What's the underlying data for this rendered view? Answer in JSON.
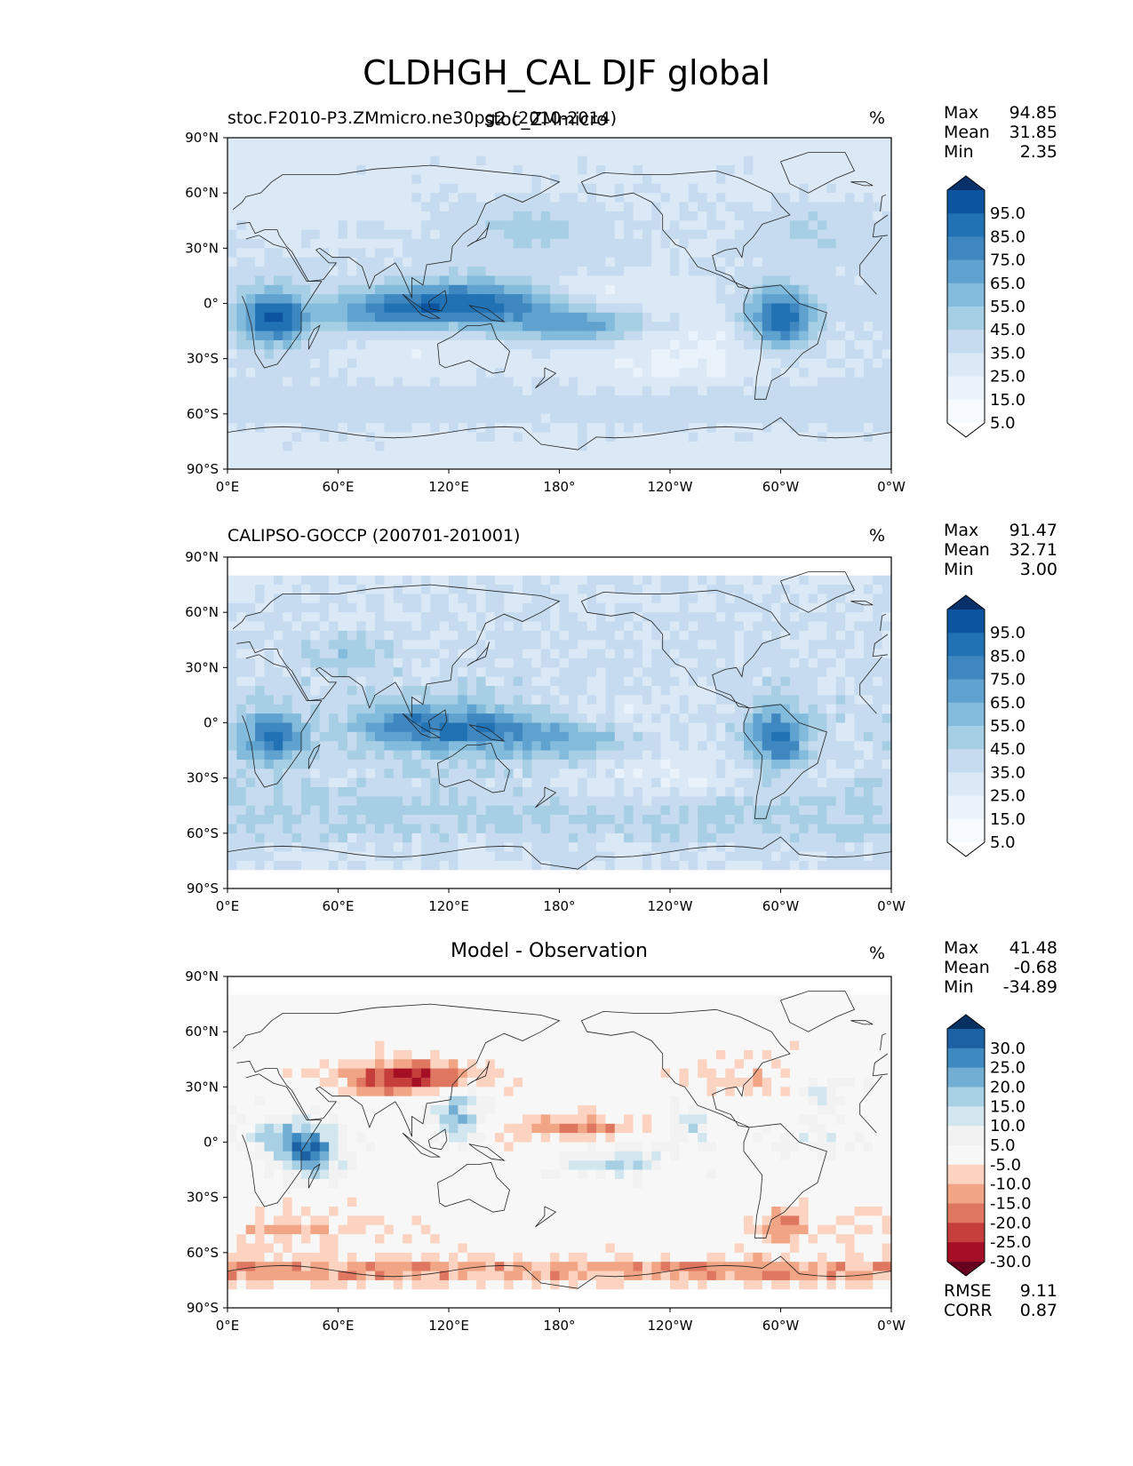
{
  "figure": {
    "title": "CLDHGH_CAL DJF global"
  },
  "color_scales": {
    "sequential": [
      "#f7fbff",
      "#ffffff",
      "#eaf2fb",
      "#dbe9f6",
      "#c6dbef",
      "#a6cee4",
      "#82bbdb",
      "#5fa2d0",
      "#3f87c1",
      "#2171b5",
      "#0d54a0",
      "#08306b"
    ],
    "diverging": [
      "#67001f",
      "#a50f26",
      "#c63e3c",
      "#df7660",
      "#f1a584",
      "#fbd3c0",
      "#f7f7f7",
      "#f2f2f2",
      "#d2e6f0",
      "#a8d0e5",
      "#72aed3",
      "#3e8ac0",
      "#1c61a4",
      "#053061"
    ]
  },
  "chart_data": [
    {
      "type": "heatmap",
      "panel": "test",
      "title": "stoc.F2010-P3.ZMmicro.ne30pg2 (2010-2014)",
      "overlap_title": "stoc_ZMmicro",
      "units": "%",
      "stats": [
        {
          "label": "Max",
          "value": "94.85"
        },
        {
          "label": "Mean",
          "value": "31.85"
        },
        {
          "label": "Min",
          "value": "2.35"
        }
      ],
      "x_ticks": [
        "0°E",
        "60°E",
        "120°E",
        "180°",
        "120°W",
        "60°W",
        "0°W"
      ],
      "y_ticks": [
        "90°N",
        "60°N",
        "30°N",
        "0°",
        "30°S",
        "60°S",
        "90°S"
      ],
      "xlim": [
        0,
        360
      ],
      "ylim": [
        -90,
        90
      ],
      "colorbar_labels": [
        "95.0",
        "85.0",
        "75.0",
        "65.0",
        "55.0",
        "45.0",
        "35.0",
        "25.0",
        "15.0",
        "5.0"
      ],
      "colorbar_scale": "sequential",
      "field": {
        "base": 28,
        "lat_decay": 0.012,
        "blobs": [
          {
            "lon": 25,
            "lat": -8,
            "a": 60,
            "sx": 12,
            "sy": 10
          },
          {
            "lon": 140,
            "lat": 0,
            "a": 55,
            "sx": 28,
            "sy": 9
          },
          {
            "lon": 95,
            "lat": -3,
            "a": 30,
            "sx": 20,
            "sy": 8
          },
          {
            "lon": 195,
            "lat": -12,
            "a": 35,
            "sx": 25,
            "sy": 7
          },
          {
            "lon": 300,
            "lat": -8,
            "a": 62,
            "sx": 12,
            "sy": 11
          },
          {
            "lon": 70,
            "lat": -5,
            "a": 18,
            "sx": 25,
            "sy": 8
          },
          {
            "lon": 165,
            "lat": 40,
            "a": 14,
            "sx": 25,
            "sy": 10
          },
          {
            "lon": 320,
            "lat": 40,
            "a": 12,
            "sx": 20,
            "sy": 10
          },
          {
            "lon": 200,
            "lat": 5,
            "a": -12,
            "sx": 40,
            "sy": 8
          },
          {
            "lon": 240,
            "lat": -25,
            "a": -14,
            "sx": 45,
            "sy": 15
          },
          {
            "lon": 110,
            "lat": -25,
            "a": -10,
            "sx": 25,
            "sy": 10
          },
          {
            "lon": 30,
            "lat": 55,
            "a": -6,
            "sx": 30,
            "sy": 10
          },
          {
            "lon": 0,
            "lat": -55,
            "a": 8,
            "sx": 360,
            "sy": 8
          }
        ],
        "noise": 3,
        "seed": 11,
        "lat_mask": 90
      }
    },
    {
      "type": "heatmap",
      "panel": "reference",
      "title": "CALIPSO-GOCCP (200701-201001)",
      "units": "%",
      "stats": [
        {
          "label": "Max",
          "value": "91.47"
        },
        {
          "label": "Mean",
          "value": "32.71"
        },
        {
          "label": "Min",
          "value": "3.00"
        }
      ],
      "x_ticks": [
        "0°E",
        "60°E",
        "120°E",
        "180°",
        "120°W",
        "60°W",
        "0°W"
      ],
      "y_ticks": [
        "90°N",
        "60°N",
        "30°N",
        "0°",
        "30°S",
        "60°S",
        "90°S"
      ],
      "xlim": [
        0,
        360
      ],
      "ylim": [
        -90,
        90
      ],
      "colorbar_labels": [
        "95.0",
        "85.0",
        "75.0",
        "65.0",
        "55.0",
        "45.0",
        "35.0",
        "25.0",
        "15.0",
        "5.0"
      ],
      "colorbar_scale": "sequential",
      "field": {
        "base": 30,
        "lat_decay": 0.01,
        "blobs": [
          {
            "lon": 25,
            "lat": -8,
            "a": 48,
            "sx": 12,
            "sy": 10
          },
          {
            "lon": 135,
            "lat": -3,
            "a": 42,
            "sx": 30,
            "sy": 10
          },
          {
            "lon": 95,
            "lat": -2,
            "a": 25,
            "sx": 20,
            "sy": 8
          },
          {
            "lon": 190,
            "lat": -10,
            "a": 22,
            "sx": 25,
            "sy": 8
          },
          {
            "lon": 298,
            "lat": -8,
            "a": 50,
            "sx": 12,
            "sy": 12
          },
          {
            "lon": 70,
            "lat": 38,
            "a": 18,
            "sx": 15,
            "sy": 6
          },
          {
            "lon": 200,
            "lat": 8,
            "a": -12,
            "sx": 40,
            "sy": 7
          },
          {
            "lon": 240,
            "lat": -25,
            "a": -12,
            "sx": 45,
            "sy": 15
          },
          {
            "lon": 0,
            "lat": -50,
            "a": 12,
            "sx": 360,
            "sy": 10
          }
        ],
        "noise": 7,
        "seed": 23,
        "lat_mask": 82
      }
    },
    {
      "type": "heatmap",
      "panel": "difference",
      "title": "Model - Observation",
      "units": "%",
      "stats": [
        {
          "label": "Max",
          "value": "41.48"
        },
        {
          "label": "Mean",
          "value": "-0.68"
        },
        {
          "label": "Min",
          "value": "-34.89"
        }
      ],
      "footer_stats": [
        {
          "label": "RMSE",
          "value": "9.11"
        },
        {
          "label": "CORR",
          "value": "0.87"
        }
      ],
      "x_ticks": [
        "0°E",
        "60°E",
        "120°E",
        "180°",
        "120°W",
        "60°W",
        "0°W"
      ],
      "y_ticks": [
        "90°N",
        "60°N",
        "30°N",
        "0°",
        "30°S",
        "60°S",
        "90°S"
      ],
      "xlim": [
        0,
        360
      ],
      "ylim": [
        -90,
        90
      ],
      "colorbar_labels": [
        "30.0",
        "25.0",
        "20.0",
        "15.0",
        "10.0",
        "5.0",
        "-5.0",
        "-10.0",
        "-15.0",
        "-20.0",
        "-25.0",
        "-30.0"
      ],
      "colorbar_scale": "diverging",
      "field": {
        "base": 0,
        "lat_decay": 0,
        "blobs": [
          {
            "lon": 45,
            "lat": -5,
            "a": 28,
            "sx": 12,
            "sy": 10
          },
          {
            "lon": 25,
            "lat": 3,
            "a": 16,
            "sx": 12,
            "sy": 8
          },
          {
            "lon": 125,
            "lat": 15,
            "a": 20,
            "sx": 10,
            "sy": 10
          },
          {
            "lon": 210,
            "lat": -10,
            "a": 16,
            "sx": 20,
            "sy": 6
          },
          {
            "lon": 250,
            "lat": 10,
            "a": 14,
            "sx": 10,
            "sy": 8
          },
          {
            "lon": 325,
            "lat": 25,
            "a": 12,
            "sx": 10,
            "sy": 8
          },
          {
            "lon": 320,
            "lat": -2,
            "a": 10,
            "sx": 14,
            "sy": 6
          },
          {
            "lon": 100,
            "lat": 35,
            "a": -28,
            "sx": 25,
            "sy": 6
          },
          {
            "lon": 190,
            "lat": 8,
            "a": -16,
            "sx": 22,
            "sy": 5
          },
          {
            "lon": 0,
            "lat": -70,
            "a": -14,
            "sx": 360,
            "sy": 5
          },
          {
            "lon": 300,
            "lat": -45,
            "a": -14,
            "sx": 12,
            "sy": 8
          },
          {
            "lon": 30,
            "lat": -48,
            "a": -8,
            "sx": 40,
            "sy": 8
          },
          {
            "lon": 280,
            "lat": 35,
            "a": -8,
            "sx": 20,
            "sy": 8
          }
        ],
        "noise": 5,
        "seed": 37,
        "lat_mask": 82
      }
    }
  ]
}
